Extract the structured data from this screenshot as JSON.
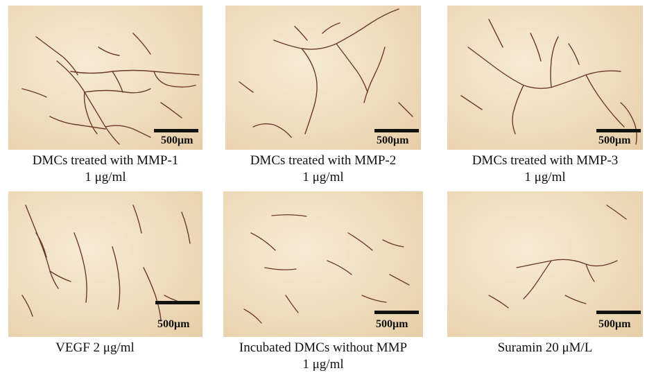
{
  "panels": [
    {
      "id": "mmp1",
      "scale_label": "500μm",
      "caption_line1": "DMCs treated with MMP-1",
      "caption_line2": "1 μg/ml"
    },
    {
      "id": "mmp2",
      "scale_label": "500μm",
      "caption_line1": "DMCs treated with MMP-2",
      "caption_line2": "1 μg/ml"
    },
    {
      "id": "mmp3",
      "scale_label": "500μm",
      "caption_line1": "DMCs treated with MMP-3",
      "caption_line2": "1 μg/ml"
    },
    {
      "id": "vegf",
      "scale_label": "500μm",
      "caption_line1": "VEGF 2 μg/ml",
      "caption_line2": ""
    },
    {
      "id": "nommp",
      "scale_label": "500μm",
      "caption_line1": "Incubated DMCs without MMP",
      "caption_line2": "1 μg/ml"
    },
    {
      "id": "suramin",
      "scale_label": "500μm",
      "caption_line1": "Suramin 20 μM/L",
      "caption_line2": ""
    }
  ],
  "colors": {
    "background": "#efdcbc",
    "vessel": "#6b3a2a",
    "scalebar": "#111111"
  }
}
